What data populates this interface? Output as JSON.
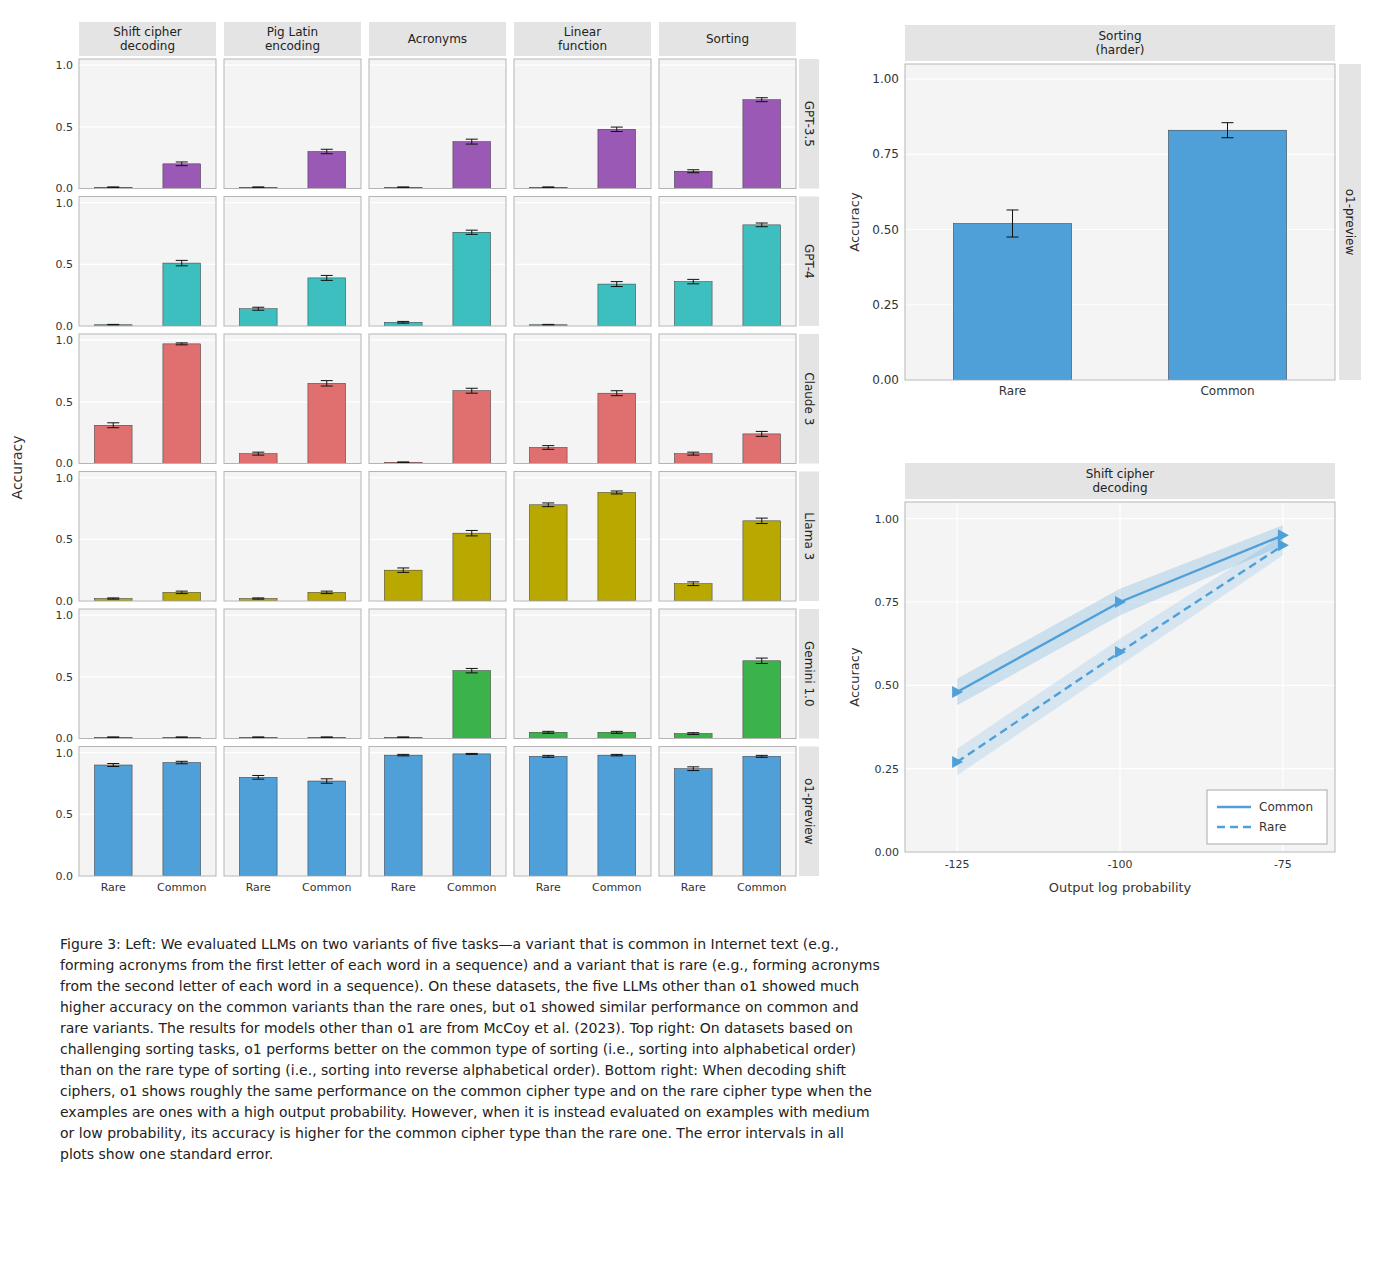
{
  "chart_data": [
    {
      "type": "bar",
      "title": "Shift cipher\ndecoding",
      "categories": [
        null,
        null
      ],
      "values": [
        0.01,
        0.2
      ],
      "errors": [
        0.003,
        0.015
      ],
      "color": "#9b59b6",
      "ylim": [
        0,
        1.05
      ],
      "yticks": [
        {
          "value": 0,
          "label": "0.0"
        },
        {
          "value": 0.5,
          "label": "0.5"
        },
        {
          "value": 1,
          "label": "1.0"
        }
      ],
      "grid": true,
      "tick_labels": "y",
      "ylabel": "Accuracy"
    },
    {
      "type": "bar",
      "title": "Pig Latin\nencoding",
      "categories": [
        null,
        null
      ],
      "values": [
        0.01,
        0.3
      ],
      "errors": [
        0.003,
        0.018
      ],
      "color": "#9b59b6",
      "ylim": [
        0,
        1.05
      ],
      "yticks": [
        0,
        0.5,
        1
      ],
      "grid": true,
      "tick_labels": false
    },
    {
      "type": "bar",
      "title": "Acronyms",
      "categories": [
        null,
        null
      ],
      "values": [
        0.01,
        0.38
      ],
      "errors": [
        0.003,
        0.02
      ],
      "color": "#9b59b6",
      "ylim": [
        0,
        1.05
      ],
      "yticks": [
        0,
        0.5,
        1
      ],
      "grid": true,
      "tick_labels": false
    },
    {
      "type": "bar",
      "title": "Linear\nfunction",
      "categories": [
        null,
        null
      ],
      "values": [
        0.01,
        0.48
      ],
      "errors": [
        0.003,
        0.018
      ],
      "color": "#9b59b6",
      "ylim": [
        0,
        1.05
      ],
      "yticks": [
        0,
        0.5,
        1
      ],
      "grid": true,
      "tick_labels": false
    },
    {
      "type": "bar",
      "title": "Sorting",
      "categories": [
        null,
        null
      ],
      "values": [
        0.14,
        0.72
      ],
      "errors": [
        0.012,
        0.016
      ],
      "color": "#9b59b6",
      "ylim": [
        0,
        1.05
      ],
      "yticks": [
        0,
        0.5,
        1
      ],
      "grid": true,
      "tick_labels": false,
      "annotations": [
        "GPT-3.5"
      ]
    },
    {
      "type": "bar",
      "categories": [
        null,
        null
      ],
      "values": [
        0.01,
        0.51
      ],
      "errors": [
        0.003,
        0.022
      ],
      "color": "#3dbfbf",
      "ylim": [
        0,
        1.05
      ],
      "yticks": [
        {
          "value": 0,
          "label": "0.0"
        },
        {
          "value": 0.5,
          "label": "0.5"
        },
        {
          "value": 1,
          "label": "1.0"
        }
      ],
      "grid": true,
      "tick_labels": "y"
    },
    {
      "type": "bar",
      "categories": [
        null,
        null
      ],
      "values": [
        0.14,
        0.39
      ],
      "errors": [
        0.012,
        0.02
      ],
      "color": "#3dbfbf",
      "ylim": [
        0,
        1.05
      ],
      "yticks": [
        0,
        0.5,
        1
      ],
      "grid": true,
      "tick_labels": false
    },
    {
      "type": "bar",
      "categories": [
        null,
        null
      ],
      "values": [
        0.03,
        0.76
      ],
      "errors": [
        0.007,
        0.017
      ],
      "color": "#3dbfbf",
      "ylim": [
        0,
        1.05
      ],
      "yticks": [
        0,
        0.5,
        1
      ],
      "grid": true,
      "tick_labels": false
    },
    {
      "type": "bar",
      "categories": [
        null,
        null
      ],
      "values": [
        0.01,
        0.34
      ],
      "errors": [
        0.003,
        0.02
      ],
      "color": "#3dbfbf",
      "ylim": [
        0,
        1.05
      ],
      "yticks": [
        0,
        0.5,
        1
      ],
      "grid": true,
      "tick_labels": false
    },
    {
      "type": "bar",
      "categories": [
        null,
        null
      ],
      "values": [
        0.36,
        0.82
      ],
      "errors": [
        0.018,
        0.015
      ],
      "color": "#3dbfbf",
      "ylim": [
        0,
        1.05
      ],
      "yticks": [
        0,
        0.5,
        1
      ],
      "grid": true,
      "tick_labels": false,
      "annotations": [
        "GPT-4"
      ]
    },
    {
      "type": "bar",
      "categories": [
        null,
        null
      ],
      "values": [
        0.31,
        0.97
      ],
      "errors": [
        0.02,
        0.008
      ],
      "color": "#e07070",
      "ylim": [
        0,
        1.05
      ],
      "yticks": [
        {
          "value": 0,
          "label": "0.0"
        },
        {
          "value": 0.5,
          "label": "0.5"
        },
        {
          "value": 1,
          "label": "1.0"
        }
      ],
      "grid": true,
      "tick_labels": "y"
    },
    {
      "type": "bar",
      "categories": [
        null,
        null
      ],
      "values": [
        0.08,
        0.65
      ],
      "errors": [
        0.012,
        0.022
      ],
      "color": "#e07070",
      "ylim": [
        0,
        1.05
      ],
      "yticks": [
        0,
        0.5,
        1
      ],
      "grid": true,
      "tick_labels": false
    },
    {
      "type": "bar",
      "categories": [
        null,
        null
      ],
      "values": [
        0.01,
        0.59
      ],
      "errors": [
        0.003,
        0.02
      ],
      "color": "#e07070",
      "ylim": [
        0,
        1.05
      ],
      "yticks": [
        0,
        0.5,
        1
      ],
      "grid": true,
      "tick_labels": false
    },
    {
      "type": "bar",
      "categories": [
        null,
        null
      ],
      "values": [
        0.13,
        0.57
      ],
      "errors": [
        0.015,
        0.02
      ],
      "color": "#e07070",
      "ylim": [
        0,
        1.05
      ],
      "yticks": [
        0,
        0.5,
        1
      ],
      "grid": true,
      "tick_labels": false
    },
    {
      "type": "bar",
      "categories": [
        null,
        null
      ],
      "values": [
        0.08,
        0.24
      ],
      "errors": [
        0.012,
        0.02
      ],
      "color": "#e07070",
      "ylim": [
        0,
        1.05
      ],
      "yticks": [
        0,
        0.5,
        1
      ],
      "grid": true,
      "tick_labels": false,
      "annotations": [
        "Claude 3"
      ]
    },
    {
      "type": "bar",
      "categories": [
        null,
        null
      ],
      "values": [
        0.02,
        0.07
      ],
      "errors": [
        0.005,
        0.01
      ],
      "color": "#b8a800",
      "ylim": [
        0,
        1.05
      ],
      "yticks": [
        {
          "value": 0,
          "label": "0.0"
        },
        {
          "value": 0.5,
          "label": "0.5"
        },
        {
          "value": 1,
          "label": "1.0"
        }
      ],
      "grid": true,
      "tick_labels": "y"
    },
    {
      "type": "bar",
      "categories": [
        null,
        null
      ],
      "values": [
        0.02,
        0.07
      ],
      "errors": [
        0.005,
        0.01
      ],
      "color": "#b8a800",
      "ylim": [
        0,
        1.05
      ],
      "yticks": [
        0,
        0.5,
        1
      ],
      "grid": true,
      "tick_labels": false
    },
    {
      "type": "bar",
      "categories": [
        null,
        null
      ],
      "values": [
        0.25,
        0.55
      ],
      "errors": [
        0.018,
        0.022
      ],
      "color": "#b8a800",
      "ylim": [
        0,
        1.05
      ],
      "yticks": [
        0,
        0.5,
        1
      ],
      "grid": true,
      "tick_labels": false
    },
    {
      "type": "bar",
      "categories": [
        null,
        null
      ],
      "values": [
        0.78,
        0.88
      ],
      "errors": [
        0.015,
        0.012
      ],
      "color": "#b8a800",
      "ylim": [
        0,
        1.05
      ],
      "yticks": [
        0,
        0.5,
        1
      ],
      "grid": true,
      "tick_labels": false
    },
    {
      "type": "bar",
      "categories": [
        null,
        null
      ],
      "values": [
        0.14,
        0.65
      ],
      "errors": [
        0.015,
        0.022
      ],
      "color": "#b8a800",
      "ylim": [
        0,
        1.05
      ],
      "yticks": [
        0,
        0.5,
        1
      ],
      "grid": true,
      "tick_labels": false,
      "annotations": [
        "Llama 3"
      ]
    },
    {
      "type": "bar",
      "categories": [
        null,
        null
      ],
      "values": [
        0.01,
        0.01
      ],
      "errors": [
        0.003,
        0.003
      ],
      "color": "#3cb34a",
      "ylim": [
        0,
        1.05
      ],
      "yticks": [
        {
          "value": 0,
          "label": "0.0"
        },
        {
          "value": 0.5,
          "label": "0.5"
        },
        {
          "value": 1,
          "label": "1.0"
        }
      ],
      "grid": true,
      "tick_labels": "y"
    },
    {
      "type": "bar",
      "categories": [
        null,
        null
      ],
      "values": [
        0.01,
        0.01
      ],
      "errors": [
        0.003,
        0.003
      ],
      "color": "#3cb34a",
      "ylim": [
        0,
        1.05
      ],
      "yticks": [
        0,
        0.5,
        1
      ],
      "grid": true,
      "tick_labels": false
    },
    {
      "type": "bar",
      "categories": [
        null,
        null
      ],
      "values": [
        0.01,
        0.55
      ],
      "errors": [
        0.003,
        0.018
      ],
      "color": "#3cb34a",
      "ylim": [
        0,
        1.05
      ],
      "yticks": [
        0,
        0.5,
        1
      ],
      "grid": true,
      "tick_labels": false
    },
    {
      "type": "bar",
      "categories": [
        null,
        null
      ],
      "values": [
        0.05,
        0.05
      ],
      "errors": [
        0.008,
        0.008
      ],
      "color": "#3cb34a",
      "ylim": [
        0,
        1.05
      ],
      "yticks": [
        0,
        0.5,
        1
      ],
      "grid": true,
      "tick_labels": false
    },
    {
      "type": "bar",
      "categories": [
        null,
        null
      ],
      "values": [
        0.04,
        0.63
      ],
      "errors": [
        0.007,
        0.022
      ],
      "color": "#3cb34a",
      "ylim": [
        0,
        1.05
      ],
      "yticks": [
        0,
        0.5,
        1
      ],
      "grid": true,
      "tick_labels": false,
      "annotations": [
        "Gemini 1.0"
      ]
    },
    {
      "type": "bar",
      "categories": [
        "Rare",
        "Common"
      ],
      "values": [
        0.9,
        0.92
      ],
      "errors": [
        0.012,
        0.01
      ],
      "color": "#4f9fd8",
      "ylim": [
        0,
        1.05
      ],
      "yticks": [
        {
          "value": 0,
          "label": "0.0"
        },
        {
          "value": 0.5,
          "label": "0.5"
        },
        {
          "value": 1,
          "label": "1.0"
        }
      ],
      "grid": true
    },
    {
      "type": "bar",
      "categories": [
        "Rare",
        "Common"
      ],
      "values": [
        0.8,
        0.77
      ],
      "errors": [
        0.015,
        0.018
      ],
      "color": "#4f9fd8",
      "ylim": [
        0,
        1.05
      ],
      "yticks": [
        0,
        0.5,
        1
      ],
      "grid": true,
      "tick_labels": "x"
    },
    {
      "type": "bar",
      "categories": [
        "Rare",
        "Common"
      ],
      "values": [
        0.98,
        0.99
      ],
      "errors": [
        0.006,
        0.004
      ],
      "color": "#4f9fd8",
      "ylim": [
        0,
        1.05
      ],
      "yticks": [
        0,
        0.5,
        1
      ],
      "grid": true,
      "tick_labels": "x"
    },
    {
      "type": "bar",
      "categories": [
        "Rare",
        "Common"
      ],
      "values": [
        0.97,
        0.98
      ],
      "errors": [
        0.008,
        0.006
      ],
      "color": "#4f9fd8",
      "ylim": [
        0,
        1.05
      ],
      "yticks": [
        0,
        0.5,
        1
      ],
      "grid": true,
      "tick_labels": "x"
    },
    {
      "type": "bar",
      "categories": [
        "Rare",
        "Common"
      ],
      "values": [
        0.87,
        0.97
      ],
      "errors": [
        0.015,
        0.008
      ],
      "color": "#4f9fd8",
      "ylim": [
        0,
        1.05
      ],
      "yticks": [
        0,
        0.5,
        1
      ],
      "grid": true,
      "tick_labels": "x",
      "annotations": [
        "o1-preview"
      ]
    },
    {
      "type": "bar",
      "title": "Sorting\n(harder)",
      "categories": [
        "Rare",
        "Common"
      ],
      "values": [
        0.52,
        0.83
      ],
      "errors": [
        0.045,
        0.025
      ],
      "color": "#4f9fd8",
      "ylim": [
        0,
        1.05
      ],
      "yticks": [
        {
          "value": 0,
          "label": "0.00"
        },
        {
          "value": 0.25,
          "label": "0.25"
        },
        {
          "value": 0.5,
          "label": "0.50"
        },
        {
          "value": 0.75,
          "label": "0.75"
        },
        {
          "value": 1,
          "label": "1.00"
        }
      ],
      "ylabel": "Accuracy",
      "grid": true,
      "annotations": [
        "o1-preview"
      ]
    },
    {
      "type": "line",
      "title": "Shift cipher\ndecoding",
      "x": [
        -125,
        -100,
        -75
      ],
      "series": [
        {
          "name": "Common",
          "values": [
            0.48,
            0.75,
            0.95
          ],
          "errors": [
            0.04,
            0.04,
            0.03
          ],
          "color": "#4f9fd8",
          "line_style": "solid",
          "marker": "triangle-right"
        },
        {
          "name": "Rare",
          "values": [
            0.27,
            0.6,
            0.92
          ],
          "errors": [
            0.04,
            0.04,
            0.03
          ],
          "color": "#4f9fd8",
          "line_style": "dashed",
          "marker": "triangle-right"
        }
      ],
      "xlim": [
        -133,
        -67
      ],
      "xticks": [
        -125,
        -100,
        -75
      ],
      "ylim": [
        0,
        1.05
      ],
      "yticks": [
        {
          "value": 0,
          "label": "0.00"
        },
        {
          "value": 0.25,
          "label": "0.25"
        },
        {
          "value": 0.5,
          "label": "0.50"
        },
        {
          "value": 0.75,
          "label": "0.75"
        },
        {
          "value": 1,
          "label": "1.00"
        }
      ],
      "xlabel": "Output log probability",
      "ylabel": "Accuracy",
      "grid": true,
      "legend": "lower right"
    }
  ],
  "caption": [
    "Figure 3: Left: We evaluated LLMs on two variants of five tasks—a variant that is common in Internet text (e.g.,",
    "forming acronyms from the first letter of each word in a sequence) and a variant that is rare (e.g., forming acronyms",
    "from the second letter of each word in a sequence). On these datasets, the five LLMs other than o1 showed much",
    "higher accuracy on the common variants than the rare ones, but o1 showed similar performance on common and",
    "rare variants. The results for models other than o1 are from McCoy et al. (2023). Top right: On datasets based on",
    "challenging sorting tasks, o1 performs better on the common type of sorting (i.e., sorting into alphabetical order)",
    "than on the rare type of sorting (i.e., sorting into reverse alphabetical order). Bottom right: When decoding shift",
    "ciphers, o1 shows roughly the same performance on the common cipher type and on the rare cipher type when the",
    "examples are ones with a high output probability. However, when it is instead evaluated on examples with medium",
    "or low probability, its accuracy is higher for the common cipher type than the rare one. The error intervals in all",
    "plots show one standard error."
  ]
}
